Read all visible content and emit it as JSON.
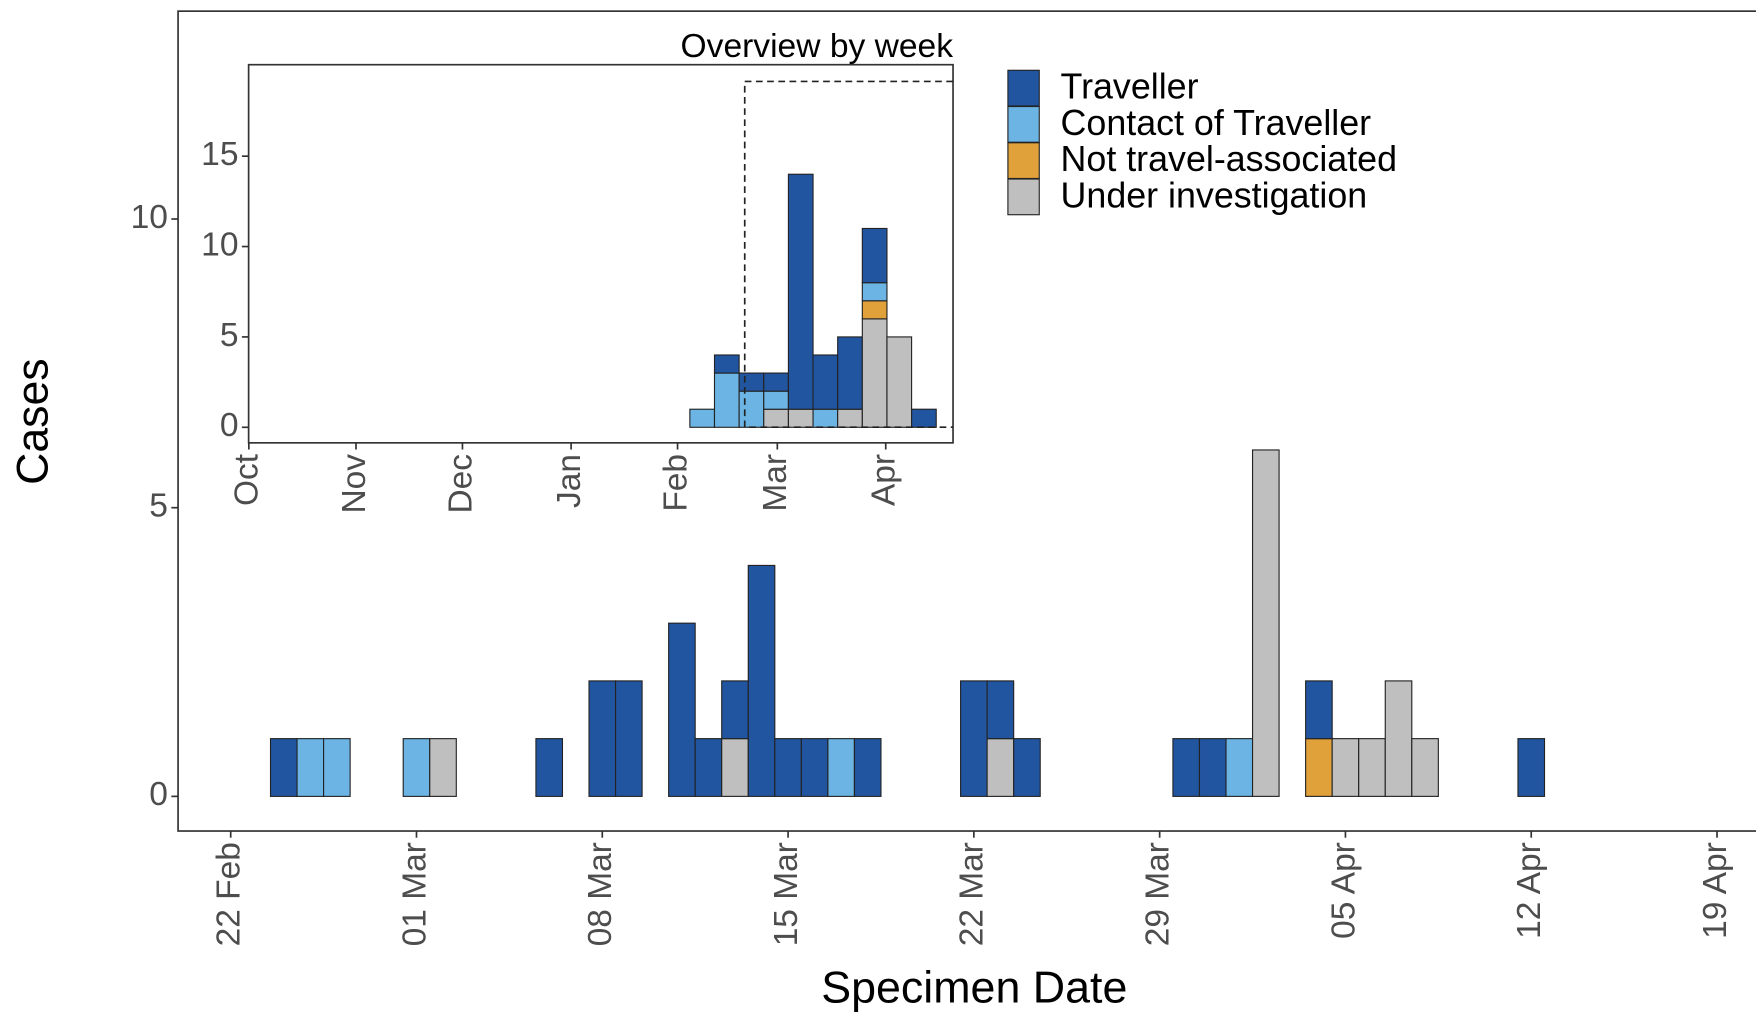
{
  "chart_data": [
    {
      "type": "bar",
      "stacked": true,
      "x_label": "Specimen Date",
      "y_label": "Cases",
      "categories": [
        "22 Feb",
        null,
        null,
        null,
        null,
        null,
        null,
        "01 Mar",
        null,
        null,
        null,
        null,
        null,
        null,
        "08 Mar",
        null,
        null,
        null,
        null,
        null,
        null,
        "15 Mar",
        null,
        null,
        null,
        null,
        null,
        null,
        "22 Mar",
        null,
        null,
        null,
        null,
        null,
        null,
        "29 Mar",
        null,
        null,
        null,
        null,
        null,
        null,
        "05 Apr",
        null,
        null,
        null,
        null,
        null,
        null,
        "12 Apr",
        null,
        null,
        null,
        null,
        null,
        null,
        "19 Apr"
      ],
      "series": [
        {
          "name": "Traveller",
          "color": "#2255a0",
          "values": [
            0,
            0,
            1,
            0,
            0,
            0,
            0,
            0,
            0,
            0,
            0,
            0,
            1,
            0,
            2,
            2,
            0,
            3,
            1,
            1,
            4,
            1,
            1,
            0,
            1,
            0,
            0,
            0,
            2,
            1,
            1,
            0,
            0,
            0,
            0,
            0,
            1,
            1,
            0,
            0,
            0,
            1,
            0,
            0,
            0,
            0,
            0,
            0,
            0,
            1,
            0,
            0,
            0,
            0,
            0,
            0,
            0
          ]
        },
        {
          "name": "Contact of Traveller",
          "color": "#6cb4e4",
          "values": [
            0,
            0,
            0,
            1,
            1,
            0,
            0,
            1,
            0,
            0,
            0,
            0,
            0,
            0,
            0,
            0,
            0,
            0,
            0,
            0,
            0,
            0,
            0,
            1,
            0,
            0,
            0,
            0,
            0,
            0,
            0,
            0,
            0,
            0,
            0,
            0,
            0,
            0,
            1,
            0,
            0,
            0,
            0,
            0,
            0,
            0,
            0,
            0,
            0,
            0,
            0,
            0,
            0,
            0,
            0,
            0,
            0
          ]
        },
        {
          "name": "Not travel-associated",
          "color": "#e0a03a",
          "values": [
            0,
            0,
            0,
            0,
            0,
            0,
            0,
            0,
            0,
            0,
            0,
            0,
            0,
            0,
            0,
            0,
            0,
            0,
            0,
            0,
            0,
            0,
            0,
            0,
            0,
            0,
            0,
            0,
            0,
            0,
            0,
            0,
            0,
            0,
            0,
            0,
            0,
            0,
            0,
            0,
            0,
            1,
            0,
            0,
            0,
            0,
            0,
            0,
            0,
            0,
            0,
            0,
            0,
            0,
            0,
            0,
            0
          ]
        },
        {
          "name": "Under investigation",
          "color": "#bfbfbf",
          "values": [
            0,
            0,
            0,
            0,
            0,
            0,
            0,
            0,
            1,
            0,
            0,
            0,
            0,
            0,
            0,
            0,
            0,
            0,
            0,
            1,
            0,
            0,
            0,
            0,
            0,
            0,
            0,
            0,
            0,
            1,
            0,
            0,
            0,
            0,
            0,
            0,
            0,
            0,
            0,
            6,
            0,
            0,
            1,
            1,
            2,
            1,
            0,
            0,
            0,
            0,
            0,
            0,
            0,
            0,
            0,
            0,
            0
          ]
        }
      ],
      "ylim": [
        -0.6,
        13.6
      ],
      "yticks": [
        0,
        5,
        10
      ]
    },
    {
      "type": "bar",
      "stacked": true,
      "title": "Overview by week",
      "categories": [
        null,
        null,
        null,
        null,
        null,
        null,
        null,
        null,
        null,
        null
      ],
      "series": [
        {
          "color": "#2255a0",
          "values": [
            0,
            1,
            1,
            1,
            13,
            3,
            4,
            3,
            0,
            1
          ]
        },
        {
          "color": "#6cb4e4",
          "values": [
            1,
            3,
            2,
            1,
            0,
            1,
            0,
            1,
            0,
            0
          ]
        },
        {
          "color": "#e0a03a",
          "values": [
            0,
            0,
            0,
            0,
            0,
            0,
            0,
            1,
            0,
            0
          ]
        },
        {
          "color": "#bfbfbf",
          "values": [
            0,
            0,
            0,
            1,
            1,
            0,
            1,
            6,
            5,
            0
          ]
        }
      ],
      "ylim": [
        -0.86,
        20.06
      ],
      "yticks": [
        0,
        5,
        10,
        15
      ],
      "xticks": [
        {
          "value": -18.4,
          "label": "Oct"
        },
        {
          "value": -14.05,
          "label": "Nov"
        },
        {
          "value": -9.73,
          "label": "Dec"
        },
        {
          "value": -5.32,
          "label": "Jan"
        },
        {
          "value": -1.0,
          "label": "Feb"
        },
        {
          "value": 3.05,
          "label": "Mar"
        },
        {
          "value": 7.45,
          "label": "Apr"
        }
      ]
    }
  ]
}
